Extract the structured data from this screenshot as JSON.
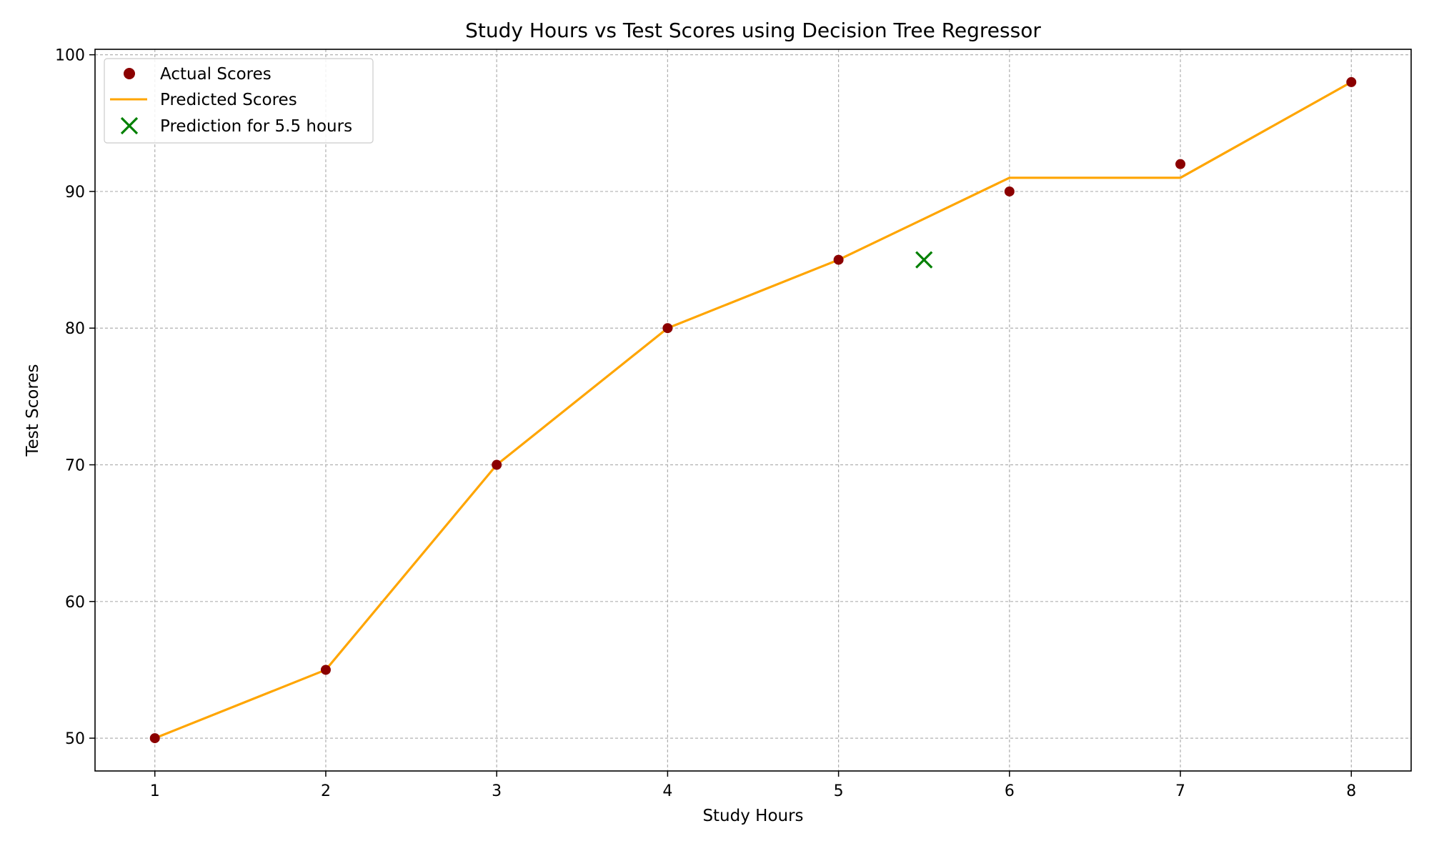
{
  "chart_data": {
    "type": "scatter",
    "title": "Study Hours vs Test Scores using Decision Tree Regressor",
    "xlabel": "Study Hours",
    "ylabel": "Test Scores",
    "xlim": [
      0.65,
      8.35
    ],
    "ylim": [
      47.6,
      100.4
    ],
    "xticks": [
      1,
      2,
      3,
      4,
      5,
      6,
      7,
      8
    ],
    "yticks": [
      50,
      60,
      70,
      80,
      90,
      100
    ],
    "grid": true,
    "legend_position": "upper left",
    "series": [
      {
        "name": "Actual Scores",
        "kind": "scatter",
        "marker": "circle",
        "color": "#8b0000",
        "x": [
          1,
          2,
          3,
          4,
          5,
          6,
          7,
          8
        ],
        "y": [
          50,
          55,
          70,
          80,
          85,
          90,
          92,
          98
        ]
      },
      {
        "name": "Predicted Scores",
        "kind": "line",
        "color": "#ffa500",
        "x": [
          1,
          2,
          3,
          4,
          5,
          6,
          7,
          8
        ],
        "y": [
          50,
          55,
          70,
          80,
          85,
          91,
          91,
          98
        ]
      },
      {
        "name": "Prediction for 5.5 hours",
        "kind": "scatter",
        "marker": "x",
        "color": "#008000",
        "x": [
          5.5
        ],
        "y": [
          85
        ]
      }
    ]
  }
}
